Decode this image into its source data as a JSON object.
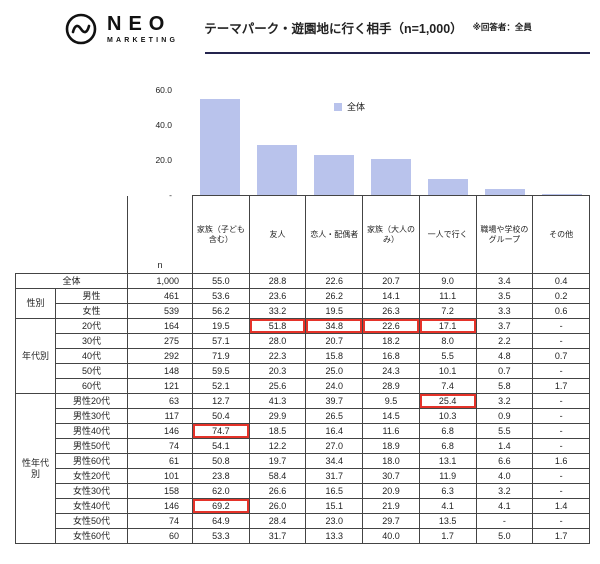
{
  "header": {
    "logo_brand": "NEO",
    "logo_sub": "MARKETING",
    "title": "テーマパーク・遊園地に行く相手（n=1,000）",
    "note": "※回答者：全員"
  },
  "chart": {
    "legend": "全体",
    "yticks": [
      {
        "label": "60.0",
        "value": 60
      },
      {
        "label": "40.0",
        "value": 40
      },
      {
        "label": "20.0",
        "value": 20
      },
      {
        "label": "-",
        "value": 0
      }
    ]
  },
  "chart_data": {
    "type": "bar",
    "title": "テーマパーク・遊園地に行く相手（n=1,000）",
    "categories": [
      "家族（子ども含む）",
      "友人",
      "恋人・配偶者",
      "家族（大人のみ）",
      "一人で行く",
      "職場や学校のグループ",
      "その他"
    ],
    "values": [
      55.0,
      28.8,
      22.6,
      20.7,
      9.0,
      3.4,
      0.4
    ],
    "series_name": "全体",
    "legend": [
      "全体"
    ],
    "legend_position": "top-center",
    "xlabel": "",
    "ylabel": "",
    "ylim": [
      0,
      60
    ],
    "yticks": [
      0,
      20,
      40,
      60
    ],
    "grid": false
  },
  "table": {
    "n_label": "n",
    "columns": [
      "家族（子ども含む）",
      "友人",
      "恋人・配偶者",
      "家族（大人のみ）",
      "一人で行く",
      "職場や学校のグループ",
      "その他"
    ],
    "groups": [
      {
        "label": "",
        "rows": [
          {
            "name": "全体",
            "n": "1,000",
            "values": [
              "55.0",
              "28.8",
              "22.6",
              "20.7",
              "9.0",
              "3.4",
              "0.4"
            ]
          }
        ]
      },
      {
        "label": "性別",
        "rows": [
          {
            "name": "男性",
            "n": "461",
            "values": [
              "53.6",
              "23.6",
              "26.2",
              "14.1",
              "11.1",
              "3.5",
              "0.2"
            ]
          },
          {
            "name": "女性",
            "n": "539",
            "values": [
              "56.2",
              "33.2",
              "19.5",
              "26.3",
              "7.2",
              "3.3",
              "0.6"
            ]
          }
        ]
      },
      {
        "label": "年代別",
        "rows": [
          {
            "name": "20代",
            "n": "164",
            "values": [
              "19.5",
              "51.8",
              "34.8",
              "22.6",
              "17.1",
              "3.7",
              "-"
            ],
            "highlights": [
              1,
              2,
              3,
              4
            ]
          },
          {
            "name": "30代",
            "n": "275",
            "values": [
              "57.1",
              "28.0",
              "20.7",
              "18.2",
              "8.0",
              "2.2",
              "-"
            ]
          },
          {
            "name": "40代",
            "n": "292",
            "values": [
              "71.9",
              "22.3",
              "15.8",
              "16.8",
              "5.5",
              "4.8",
              "0.7"
            ]
          },
          {
            "name": "50代",
            "n": "148",
            "values": [
              "59.5",
              "20.3",
              "25.0",
              "24.3",
              "10.1",
              "0.7",
              "-"
            ]
          },
          {
            "name": "60代",
            "n": "121",
            "values": [
              "52.1",
              "25.6",
              "24.0",
              "28.9",
              "7.4",
              "5.8",
              "1.7"
            ]
          }
        ]
      },
      {
        "label": "性年代別",
        "rows": [
          {
            "name": "男性20代",
            "n": "63",
            "values": [
              "12.7",
              "41.3",
              "39.7",
              "9.5",
              "25.4",
              "3.2",
              "-"
            ],
            "highlights": [
              4
            ]
          },
          {
            "name": "男性30代",
            "n": "117",
            "values": [
              "50.4",
              "29.9",
              "26.5",
              "14.5",
              "10.3",
              "0.9",
              "-"
            ]
          },
          {
            "name": "男性40代",
            "n": "146",
            "values": [
              "74.7",
              "18.5",
              "16.4",
              "11.6",
              "6.8",
              "5.5",
              "-"
            ],
            "highlights": [
              0
            ]
          },
          {
            "name": "男性50代",
            "n": "74",
            "values": [
              "54.1",
              "12.2",
              "27.0",
              "18.9",
              "6.8",
              "1.4",
              "-"
            ]
          },
          {
            "name": "男性60代",
            "n": "61",
            "values": [
              "50.8",
              "19.7",
              "34.4",
              "18.0",
              "13.1",
              "6.6",
              "1.6"
            ]
          },
          {
            "name": "女性20代",
            "n": "101",
            "values": [
              "23.8",
              "58.4",
              "31.7",
              "30.7",
              "11.9",
              "4.0",
              "-"
            ]
          },
          {
            "name": "女性30代",
            "n": "158",
            "values": [
              "62.0",
              "26.6",
              "16.5",
              "20.9",
              "6.3",
              "3.2",
              "-"
            ]
          },
          {
            "name": "女性40代",
            "n": "146",
            "values": [
              "69.2",
              "26.0",
              "15.1",
              "21.9",
              "4.1",
              "4.1",
              "1.4"
            ],
            "highlights": [
              0
            ]
          },
          {
            "name": "女性50代",
            "n": "74",
            "values": [
              "64.9",
              "28.4",
              "23.0",
              "29.7",
              "13.5",
              "-",
              "-"
            ]
          },
          {
            "name": "女性60代",
            "n": "60",
            "values": [
              "53.3",
              "31.7",
              "13.3",
              "40.0",
              "1.7",
              "5.0",
              "1.7"
            ]
          }
        ]
      }
    ]
  },
  "colors": {
    "bar": "#b9c3ec",
    "highlight": "#e5332a",
    "rule": "#24244e",
    "border": "#444444"
  }
}
